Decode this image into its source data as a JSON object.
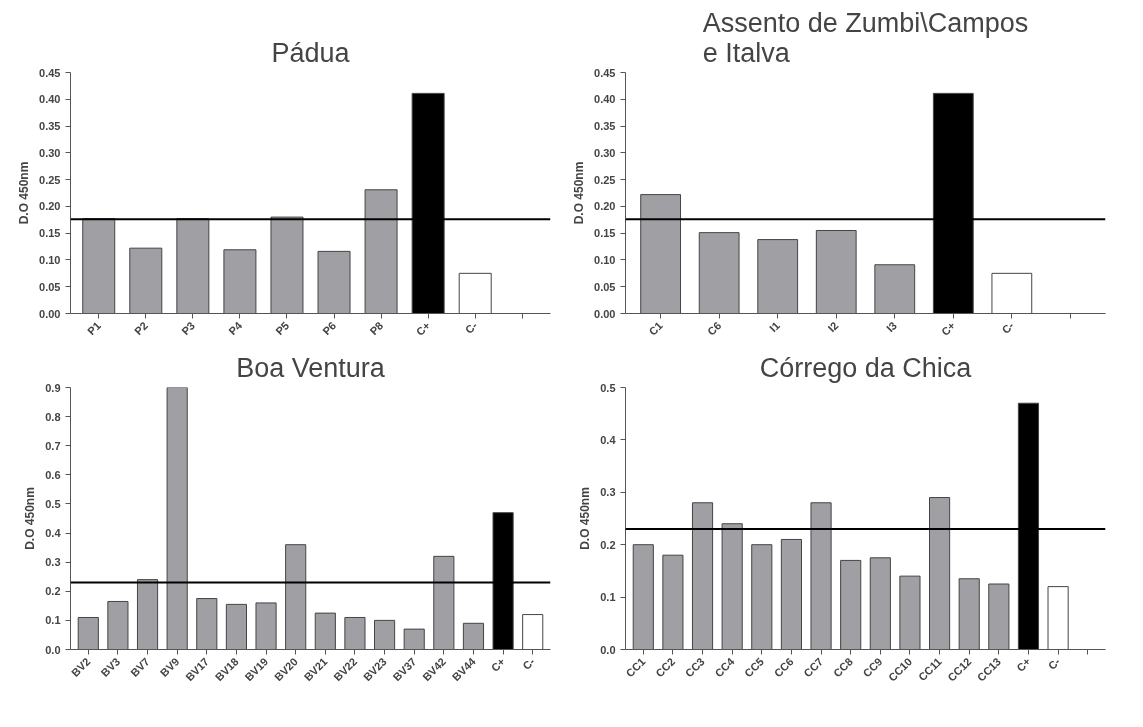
{
  "chart_data": [
    {
      "type": "bar",
      "title": "Pádua",
      "ylabel": "D.O 450nm",
      "categories": [
        "P1",
        "P2",
        "P3",
        "P4",
        "P5",
        "P6",
        "P8",
        "C+",
        "C-",
        null
      ],
      "values": [
        0.177,
        0.122,
        0.177,
        0.119,
        0.18,
        0.116,
        0.231,
        0.411,
        0.075,
        null
      ],
      "colors": [
        "#a0a0a4",
        "#a0a0a4",
        "#a0a0a4",
        "#a0a0a4",
        "#a0a0a4",
        "#a0a0a4",
        "#a0a0a4",
        "#000000",
        "#ffffff",
        "#ffffff"
      ],
      "ylim": [
        0,
        0.45
      ],
      "yticks": [
        {
          "value": 0,
          "label": "0.00"
        },
        {
          "value": 0.05,
          "label": "0.05"
        },
        {
          "value": 0.1,
          "label": "0.10"
        },
        {
          "value": 0.15,
          "label": "0.15"
        },
        {
          "value": 0.2,
          "label": "0.20"
        },
        {
          "value": 0.25,
          "label": "0.25"
        },
        {
          "value": 0.3,
          "label": "0.30"
        },
        {
          "value": 0.35,
          "label": "0.35"
        },
        {
          "value": 0.4,
          "label": "0.40"
        },
        {
          "value": 0.45,
          "label": "0.45"
        }
      ],
      "ref_lines": [
        {
          "axis": "y",
          "value": 0.176,
          "color": "#000000"
        }
      ],
      "grid": false
    },
    {
      "type": "bar",
      "title": "Assento de Zumbi\\Campos e Italva",
      "ylabel": "D.O 450nm",
      "categories": [
        "C1",
        "C6",
        "I1",
        "I2",
        "I3",
        "C+",
        "C-",
        null
      ],
      "values": [
        0.222,
        0.151,
        0.138,
        0.155,
        0.091,
        0.411,
        0.075,
        null
      ],
      "colors": [
        "#a0a0a4",
        "#a0a0a4",
        "#a0a0a4",
        "#a0a0a4",
        "#a0a0a4",
        "#000000",
        "#ffffff",
        "#ffffff"
      ],
      "ylim": [
        0,
        0.45
      ],
      "yticks": [
        {
          "value": 0,
          "label": "0.00"
        },
        {
          "value": 0.05,
          "label": "0.05"
        },
        {
          "value": 0.1,
          "label": "0.10"
        },
        {
          "value": 0.15,
          "label": "0.15"
        },
        {
          "value": 0.2,
          "label": "0.20"
        },
        {
          "value": 0.25,
          "label": "0.25"
        },
        {
          "value": 0.3,
          "label": "0.30"
        },
        {
          "value": 0.35,
          "label": "0.35"
        },
        {
          "value": 0.4,
          "label": "0.40"
        },
        {
          "value": 0.45,
          "label": "0.45"
        }
      ],
      "ref_lines": [
        {
          "axis": "y",
          "value": 0.176,
          "color": "#000000"
        }
      ],
      "grid": false
    },
    {
      "type": "bar",
      "title": "Boa Ventura",
      "ylabel": "D.O 450nm",
      "categories": [
        "BV2",
        "BV3",
        "BV7",
        "BV9",
        "BV17",
        "BV18",
        "BV19",
        "BV20",
        "BV21",
        "BV22",
        "BV23",
        "BV37",
        "BV42",
        "BV44",
        "C+",
        "C-"
      ],
      "values": [
        0.11,
        0.165,
        0.24,
        0.9,
        0.175,
        0.155,
        0.16,
        0.36,
        0.125,
        0.11,
        0.1,
        0.07,
        0.32,
        0.09,
        0.47,
        0.12
      ],
      "colors": [
        "#a0a0a4",
        "#a0a0a4",
        "#a0a0a4",
        "#a0a0a4",
        "#a0a0a4",
        "#a0a0a4",
        "#a0a0a4",
        "#a0a0a4",
        "#a0a0a4",
        "#a0a0a4",
        "#a0a0a4",
        "#a0a0a4",
        "#a0a0a4",
        "#a0a0a4",
        "#000000",
        "#ffffff"
      ],
      "ylim": [
        0,
        0.9
      ],
      "yticks": [
        {
          "value": 0,
          "label": "0.0"
        },
        {
          "value": 0.1,
          "label": "0.1"
        },
        {
          "value": 0.2,
          "label": "0.2"
        },
        {
          "value": 0.3,
          "label": "0.3"
        },
        {
          "value": 0.4,
          "label": "0.4"
        },
        {
          "value": 0.5,
          "label": "0.5"
        },
        {
          "value": 0.6,
          "label": "0.6"
        },
        {
          "value": 0.7,
          "label": "0.7"
        },
        {
          "value": 0.8,
          "label": "0.8"
        },
        {
          "value": 0.9,
          "label": "0.9"
        }
      ],
      "ref_lines": [
        {
          "axis": "y",
          "value": 0.23,
          "color": "#000000"
        }
      ],
      "grid": false
    },
    {
      "type": "bar",
      "title": "Córrego da Chica",
      "ylabel": "D.O 450nm",
      "categories": [
        "CC1",
        "CC2",
        "CC3",
        "CC4",
        "CC5",
        "CC6",
        "CC7",
        "CC8",
        "CC9",
        "CC10",
        "CC11",
        "CC12",
        "CC13",
        "C+",
        "C-",
        null
      ],
      "values": [
        0.2,
        0.18,
        0.28,
        0.24,
        0.2,
        0.21,
        0.28,
        0.17,
        0.175,
        0.14,
        0.29,
        0.135,
        0.125,
        0.47,
        0.12,
        null
      ],
      "colors": [
        "#a0a0a4",
        "#a0a0a4",
        "#a0a0a4",
        "#a0a0a4",
        "#a0a0a4",
        "#a0a0a4",
        "#a0a0a4",
        "#a0a0a4",
        "#a0a0a4",
        "#a0a0a4",
        "#a0a0a4",
        "#a0a0a4",
        "#a0a0a4",
        "#000000",
        "#ffffff",
        "#ffffff"
      ],
      "ylim": [
        0,
        0.5
      ],
      "yticks": [
        {
          "value": 0,
          "label": "0.0"
        },
        {
          "value": 0.1,
          "label": "0.1"
        },
        {
          "value": 0.2,
          "label": "0.2"
        },
        {
          "value": 0.3,
          "label": "0.3"
        },
        {
          "value": 0.4,
          "label": "0.4"
        },
        {
          "value": 0.5,
          "label": "0.5"
        }
      ],
      "ref_lines": [
        {
          "axis": "y",
          "value": 0.23,
          "color": "#000000"
        }
      ],
      "grid": false
    }
  ]
}
